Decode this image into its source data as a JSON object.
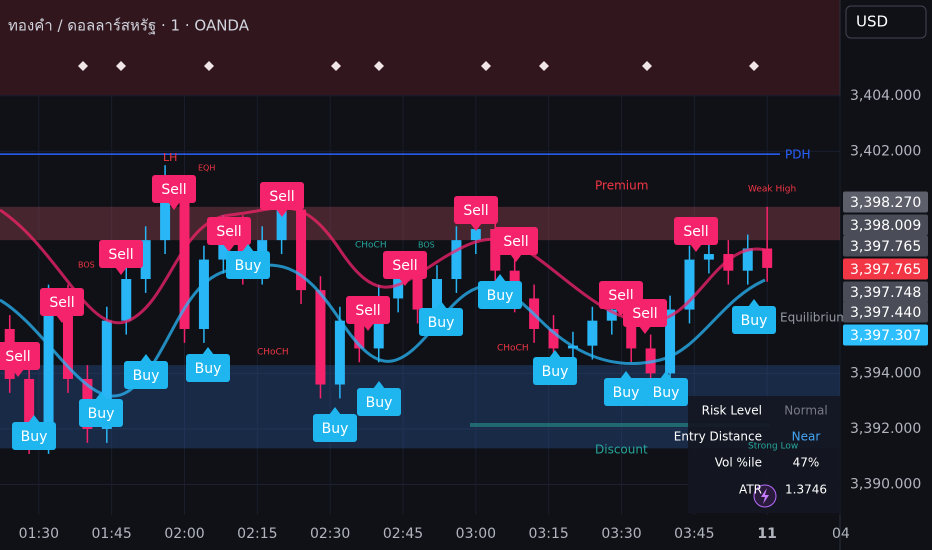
{
  "title": "ทองคำ / ดอลลาร์สหรัฐ · 1 · OANDA",
  "currency_button": "USD",
  "chart_data": {
    "type": "candlestick",
    "xlim": [
      "01:22",
      "04:15"
    ],
    "ylim": [
      3388.9,
      3407.45
    ],
    "xticks": [
      "01:30",
      "01:45",
      "02:00",
      "02:15",
      "02:30",
      "02:45",
      "03:00",
      "03:15",
      "03:30",
      "03:45",
      {
        "value": "04:00",
        "label": "11"
      },
      {
        "value": "04:15",
        "label": "04"
      }
    ],
    "yticks": [
      {
        "value": 3404,
        "label": "3,404.000"
      },
      {
        "value": 3402,
        "label": "3,402.000"
      },
      {
        "value": 3394,
        "label": "3,394.000"
      },
      {
        "value": 3392,
        "label": "3,392.000"
      },
      {
        "value": 3390,
        "label": "3,390.000"
      }
    ],
    "up_color": "#29b6f6",
    "down_color": "#f5236b",
    "x": [
      "01:24",
      "01:28",
      "01:32",
      "01:36",
      "01:40",
      "01:44",
      "01:48",
      "01:52",
      "01:56",
      "02:00",
      "02:04",
      "02:08",
      "02:12",
      "02:16",
      "02:20",
      "02:24",
      "02:28",
      "02:32",
      "02:36",
      "02:40",
      "02:44",
      "02:48",
      "02:52",
      "02:56",
      "03:00",
      "03:04",
      "03:08",
      "03:12",
      "03:16",
      "03:20",
      "03:24",
      "03:28",
      "03:32",
      "03:36",
      "03:40",
      "03:44",
      "03:48",
      "03:52",
      "03:56",
      "04:00"
    ],
    "open": [
      3395.6,
      3393.8,
      3391.6,
      3396.7,
      3393.8,
      3392.0,
      3395.9,
      3397.4,
      3398.8,
      3400.3,
      3395.6,
      3398.1,
      3399.2,
      3397.7,
      3398.8,
      3399.9,
      3397.0,
      3393.6,
      3395.9,
      3394.9,
      3396.7,
      3397.9,
      3396.3,
      3397.4,
      3398.8,
      3399.2,
      3397.7,
      3396.7,
      3395.6,
      3394.9,
      3395.0,
      3395.9,
      3396.3,
      3394.9,
      3394.0,
      3396.3,
      3398.1,
      3398.3,
      3397.7,
      3398.5
    ],
    "high": [
      3396.1,
      3394.3,
      3397.2,
      3397.2,
      3394.3,
      3396.4,
      3397.9,
      3399.3,
      3401.5,
      3400.8,
      3398.6,
      3399.7,
      3399.7,
      3399.3,
      3400.4,
      3400.4,
      3397.5,
      3396.4,
      3396.4,
      3397.2,
      3398.4,
      3398.4,
      3397.9,
      3399.3,
      3399.7,
      3399.7,
      3398.2,
      3397.2,
      3396.1,
      3395.5,
      3396.4,
      3396.8,
      3396.8,
      3395.4,
      3396.8,
      3398.6,
      3398.8,
      3398.8,
      3399.0,
      3400.0
    ],
    "low": [
      3393.3,
      3391.1,
      3391.1,
      3393.3,
      3391.5,
      3391.5,
      3395.4,
      3396.9,
      3398.3,
      3395.1,
      3395.1,
      3397.6,
      3397.2,
      3397.2,
      3398.3,
      3396.5,
      3393.1,
      3393.1,
      3394.4,
      3394.4,
      3396.2,
      3395.8,
      3395.8,
      3396.9,
      3398.3,
      3397.2,
      3396.2,
      3395.1,
      3394.4,
      3394.4,
      3394.5,
      3395.4,
      3394.4,
      3393.5,
      3393.5,
      3395.8,
      3397.6,
      3397.2,
      3397.2,
      3397.3
    ],
    "close": [
      3393.8,
      3391.6,
      3396.7,
      3393.8,
      3392.0,
      3395.9,
      3397.4,
      3398.8,
      3400.3,
      3395.6,
      3398.1,
      3399.2,
      3397.7,
      3398.8,
      3399.9,
      3397.0,
      3393.6,
      3395.9,
      3394.9,
      3396.7,
      3397.9,
      3396.3,
      3397.4,
      3398.8,
      3399.2,
      3397.7,
      3396.7,
      3395.6,
      3394.9,
      3395.0,
      3395.9,
      3396.3,
      3394.9,
      3394.0,
      3396.3,
      3398.1,
      3398.3,
      3397.7,
      3398.5,
      3397.8
    ],
    "pdh": 3401.9,
    "premium_zone": [
      3398.8,
      3400.0
    ],
    "discount_zone": [
      3391.3,
      3394.3
    ],
    "price_labels": [
      {
        "value": 3398.27,
        "label": "3,398.270",
        "color": "#5d606b"
      },
      {
        "value": 3398.009,
        "label": "3,398.009",
        "color": "#4a4d57"
      },
      {
        "value": 3397.765,
        "label": "3,397.765",
        "color": "#4a4d57"
      },
      {
        "value": 3397.765,
        "label": "3,397.765",
        "color": "#f23645"
      },
      {
        "value": 3397.748,
        "label": "3,397.748",
        "color": "#4a4d57"
      },
      {
        "value": 3397.44,
        "label": "3,397.440",
        "color": "#4a4d57"
      },
      {
        "value": 3397.307,
        "label": "3,397.307",
        "color": "#2ebfff"
      }
    ],
    "signals": [
      "Sell",
      "Sell",
      "Sell",
      "Sell",
      "Sell",
      "Sell",
      "Sell",
      "Sell",
      "Sell",
      "Sell",
      "Sell",
      "Sell",
      "Sell",
      "Buy",
      "Buy",
      "Buy",
      "Buy",
      "Buy",
      "Buy",
      "Buy",
      "Buy",
      "Buy",
      "Buy",
      "Buy",
      "Buy",
      "Buy"
    ],
    "annotations": {
      "pdh": "PDH",
      "premium": "Premium",
      "equilibrium": "Equilibrium",
      "discount": "Discount",
      "weak_high": "Weak High",
      "strong_low": "Strong Low",
      "lh": "LH",
      "eqh": "EQH",
      "bos_1": "BOS",
      "bos_2": "BOS",
      "choch_1": "CHoCH",
      "choch_2": "CHoCH",
      "choch_3": "CHoCH"
    }
  },
  "dashboard": {
    "rows": [
      [
        "Risk Level",
        "Normal"
      ],
      [
        "Entry Distance",
        "Near"
      ],
      [
        "Vol %ile",
        "47%"
      ],
      [
        "ATR",
        "1.3746"
      ]
    ]
  }
}
